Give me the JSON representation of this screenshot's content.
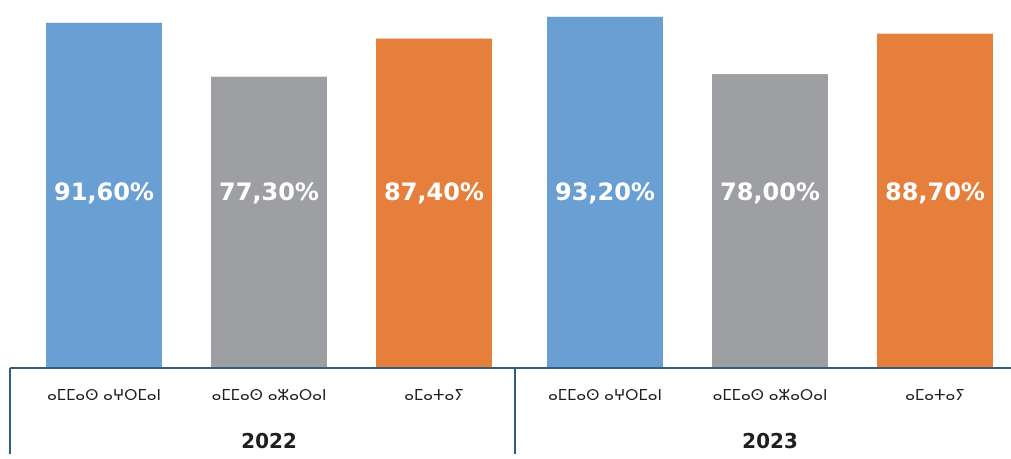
{
  "chart_data": {
    "type": "bar",
    "groups": [
      {
        "label": "2022",
        "categories": [
          "ⴰⵎⵎⴰⵙ ⴰⵖⵔⵎⴰⵏ",
          "ⴰⵎⵎⴰⵙ ⴰⵣⴰⵔⴰⵏ",
          "ⴰⵎⴰⵜⴰⵢ"
        ],
        "values": [
          91.6,
          77.3,
          87.4
        ],
        "value_labels": [
          "91,60%",
          "77,30%",
          "87,40%"
        ]
      },
      {
        "label": "2023",
        "categories": [
          "ⴰⵎⵎⴰⵙ ⴰⵖⵔⵎⴰⵏ",
          "ⴰⵎⵎⴰⵙ ⴰⵣⴰⵔⴰⵏ",
          "ⴰⵎⴰⵜⴰⵢ"
        ],
        "values": [
          93.2,
          78.0,
          88.7
        ],
        "value_labels": [
          "93,20%",
          "78,00%",
          "88,70%"
        ]
      }
    ],
    "bar_colors": [
      "#6a9fd4",
      "#9d9fa2",
      "#e67e3c"
    ],
    "axis_color": "#2d5f7f",
    "ylim": [
      0,
      95
    ],
    "grid": false,
    "legend": "none"
  }
}
